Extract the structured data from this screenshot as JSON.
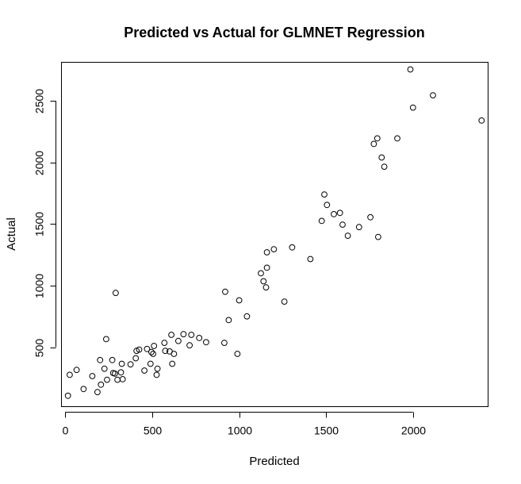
{
  "chart_data": {
    "type": "scatter",
    "title": "Predicted vs Actual for GLMNET Regression",
    "xlabel": "Predicted",
    "ylabel": "Actual",
    "xlim": [
      -20,
      2430
    ],
    "ylim": [
      20,
      2810
    ],
    "xticks": [
      0,
      500,
      1000,
      1500,
      2000
    ],
    "yticks": [
      500,
      1000,
      1500,
      2000,
      2500
    ],
    "grid": false,
    "points": [
      {
        "x": 15,
        "y": 105
      },
      {
        "x": 25,
        "y": 275
      },
      {
        "x": 65,
        "y": 315
      },
      {
        "x": 105,
        "y": 160
      },
      {
        "x": 155,
        "y": 265
      },
      {
        "x": 185,
        "y": 135
      },
      {
        "x": 200,
        "y": 395
      },
      {
        "x": 205,
        "y": 195
      },
      {
        "x": 225,
        "y": 325
      },
      {
        "x": 235,
        "y": 565
      },
      {
        "x": 240,
        "y": 235
      },
      {
        "x": 270,
        "y": 395
      },
      {
        "x": 275,
        "y": 290
      },
      {
        "x": 285,
        "y": 285
      },
      {
        "x": 290,
        "y": 940
      },
      {
        "x": 300,
        "y": 235
      },
      {
        "x": 320,
        "y": 295
      },
      {
        "x": 325,
        "y": 365
      },
      {
        "x": 330,
        "y": 240
      },
      {
        "x": 375,
        "y": 360
      },
      {
        "x": 405,
        "y": 410
      },
      {
        "x": 410,
        "y": 470
      },
      {
        "x": 425,
        "y": 480
      },
      {
        "x": 455,
        "y": 310
      },
      {
        "x": 470,
        "y": 485
      },
      {
        "x": 490,
        "y": 365
      },
      {
        "x": 495,
        "y": 460
      },
      {
        "x": 505,
        "y": 445
      },
      {
        "x": 510,
        "y": 510
      },
      {
        "x": 525,
        "y": 275
      },
      {
        "x": 530,
        "y": 325
      },
      {
        "x": 570,
        "y": 535
      },
      {
        "x": 575,
        "y": 470
      },
      {
        "x": 600,
        "y": 465
      },
      {
        "x": 610,
        "y": 600
      },
      {
        "x": 615,
        "y": 365
      },
      {
        "x": 625,
        "y": 445
      },
      {
        "x": 650,
        "y": 550
      },
      {
        "x": 680,
        "y": 605
      },
      {
        "x": 715,
        "y": 515
      },
      {
        "x": 725,
        "y": 600
      },
      {
        "x": 770,
        "y": 575
      },
      {
        "x": 810,
        "y": 540
      },
      {
        "x": 915,
        "y": 535
      },
      {
        "x": 920,
        "y": 950
      },
      {
        "x": 940,
        "y": 720
      },
      {
        "x": 990,
        "y": 445
      },
      {
        "x": 1000,
        "y": 880
      },
      {
        "x": 1045,
        "y": 750
      },
      {
        "x": 1125,
        "y": 1100
      },
      {
        "x": 1140,
        "y": 1035
      },
      {
        "x": 1155,
        "y": 985
      },
      {
        "x": 1160,
        "y": 1270
      },
      {
        "x": 1160,
        "y": 1145
      },
      {
        "x": 1200,
        "y": 1295
      },
      {
        "x": 1260,
        "y": 870
      },
      {
        "x": 1305,
        "y": 1310
      },
      {
        "x": 1410,
        "y": 1215
      },
      {
        "x": 1475,
        "y": 1525
      },
      {
        "x": 1490,
        "y": 1740
      },
      {
        "x": 1505,
        "y": 1655
      },
      {
        "x": 1545,
        "y": 1580
      },
      {
        "x": 1580,
        "y": 1590
      },
      {
        "x": 1595,
        "y": 1495
      },
      {
        "x": 1625,
        "y": 1405
      },
      {
        "x": 1690,
        "y": 1475
      },
      {
        "x": 1755,
        "y": 1555
      },
      {
        "x": 1775,
        "y": 2150
      },
      {
        "x": 1795,
        "y": 2195
      },
      {
        "x": 1800,
        "y": 1395
      },
      {
        "x": 1820,
        "y": 2040
      },
      {
        "x": 1835,
        "y": 1965
      },
      {
        "x": 1910,
        "y": 2195
      },
      {
        "x": 1985,
        "y": 2755
      },
      {
        "x": 2000,
        "y": 2445
      },
      {
        "x": 2115,
        "y": 2545
      },
      {
        "x": 2395,
        "y": 2340
      }
    ]
  }
}
